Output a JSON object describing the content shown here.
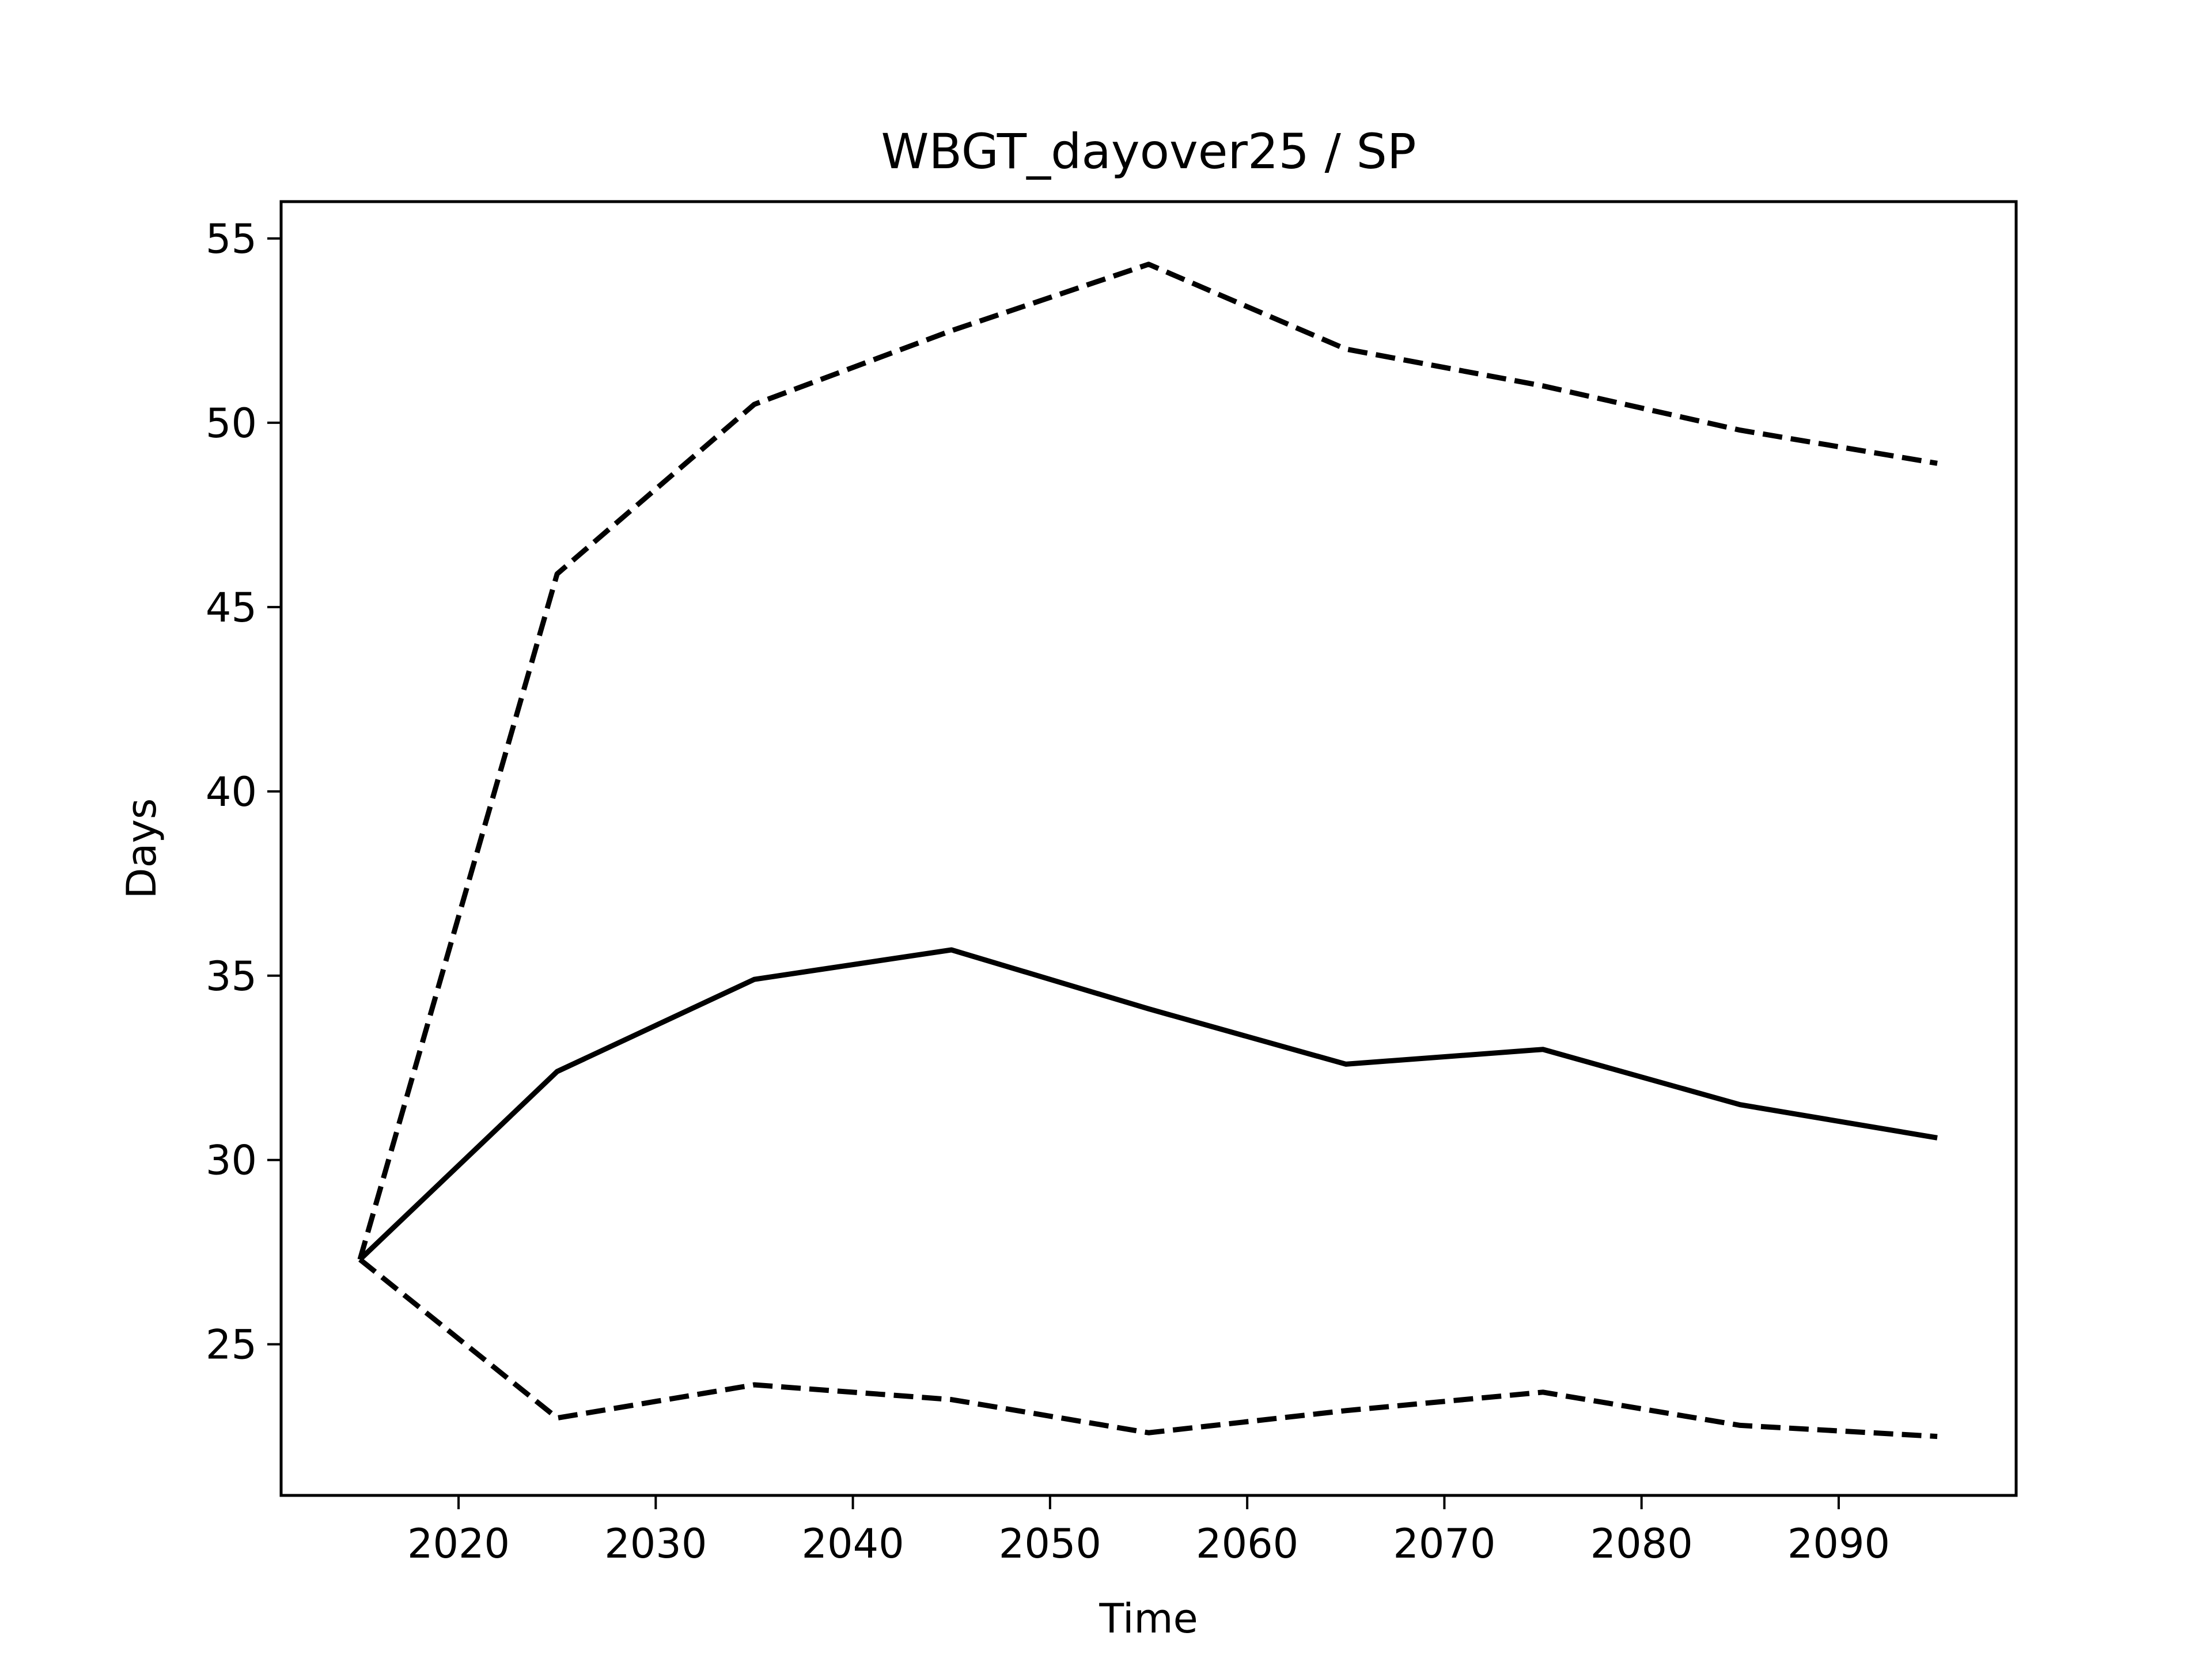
{
  "chart_data": {
    "type": "line",
    "title": "WBGT_dayover25 / SP",
    "xlabel": "Time",
    "ylabel": "Days",
    "xlim": [
      2011,
      2099
    ],
    "ylim": [
      20.9,
      56.0
    ],
    "xticks": [
      2020,
      2030,
      2040,
      2050,
      2060,
      2070,
      2080,
      2090
    ],
    "yticks": [
      25,
      30,
      35,
      40,
      45,
      50,
      55
    ],
    "grid": false,
    "legend": false,
    "x": [
      2015,
      2025,
      2035,
      2045,
      2055,
      2065,
      2075,
      2085,
      2095
    ],
    "series": [
      {
        "style": "solid",
        "color": "#000000",
        "values": [
          27.3,
          32.4,
          34.9,
          35.7,
          34.1,
          32.6,
          33.0,
          31.5,
          30.6
        ]
      },
      {
        "style": "dashed",
        "color": "#000000",
        "values": [
          27.3,
          45.9,
          50.5,
          52.5,
          54.3,
          52.0,
          51.0,
          49.8,
          48.9
        ]
      },
      {
        "style": "dashed",
        "color": "#000000",
        "values": [
          27.3,
          23.0,
          23.9,
          23.5,
          22.6,
          23.2,
          23.7,
          22.8,
          22.5
        ]
      }
    ]
  }
}
